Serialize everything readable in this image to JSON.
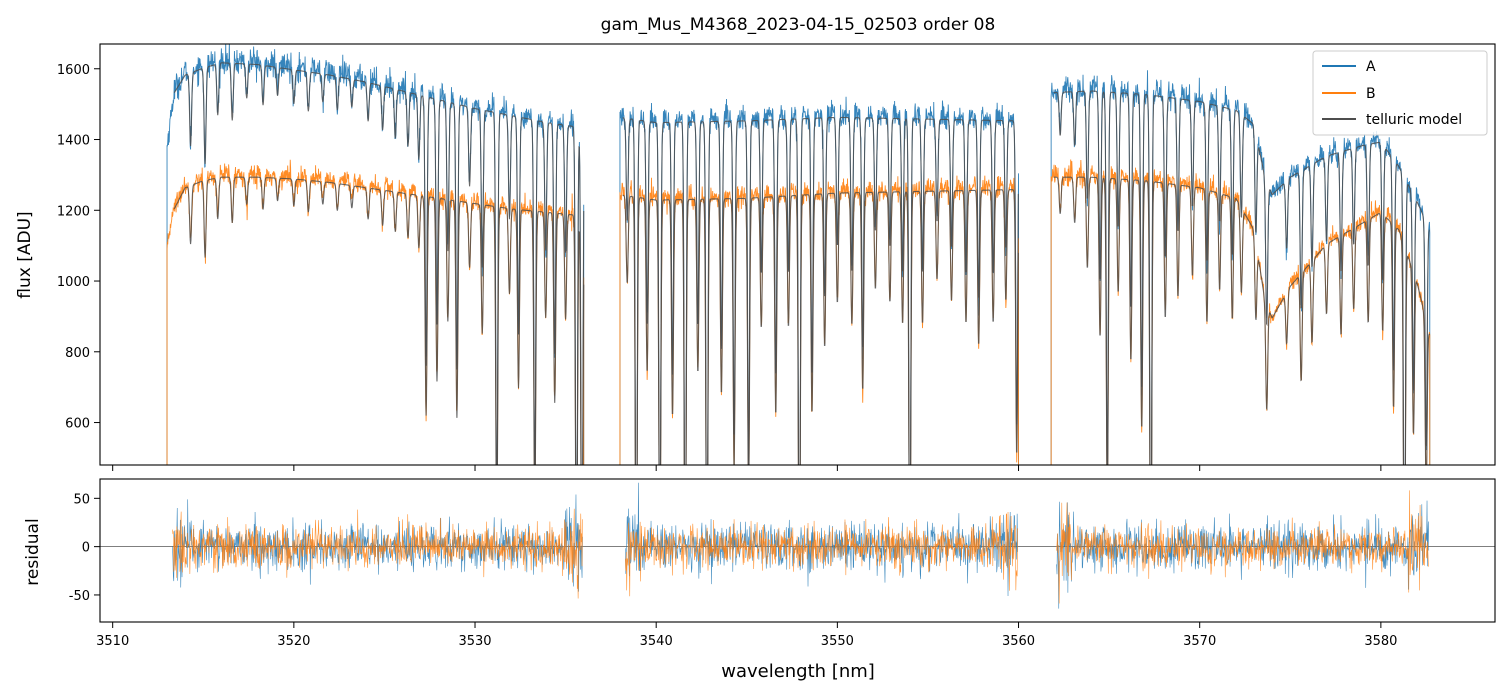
{
  "chart_data": [
    {
      "type": "line",
      "title": "gam_Mus_M4368_2023-04-15_02503  order 08",
      "xlabel": "",
      "ylabel": "flux [ADU]",
      "xlim": [
        3509.3,
        3586.3
      ],
      "ylim": [
        480,
        1670
      ],
      "yticks": [
        600,
        800,
        1000,
        1200,
        1400,
        1600
      ],
      "xticks": [
        3510,
        3520,
        3530,
        3540,
        3550,
        3560,
        3570,
        3580
      ],
      "legend": {
        "placement": "top-right",
        "entries": [
          "A",
          "B",
          "telluric model"
        ]
      },
      "series": [
        {
          "name": "A",
          "color": "#1f77b4",
          "segments": [
            {
              "x0": 3513.0,
              "x1": 3536.0,
              "continuum": [
                [
                  3513.0,
                  1380
                ],
                [
                  3513.4,
                  1540
                ],
                [
                  3514,
                  1590
                ],
                [
                  3515,
                  1610
                ],
                [
                  3516,
                  1625
                ],
                [
                  3518,
                  1620
                ],
                [
                  3520,
                  1605
                ],
                [
                  3522,
                  1590
                ],
                [
                  3524,
                  1570
                ],
                [
                  3526,
                  1545
                ],
                [
                  3528,
                  1520
                ],
                [
                  3530,
                  1495
                ],
                [
                  3532,
                  1475
                ],
                [
                  3534,
                  1455
                ],
                [
                  3536,
                  1440
                ]
              ]
            },
            {
              "x0": 3538.0,
              "x1": 3560.0,
              "continuum": [
                [
                  3538,
                  1470
                ],
                [
                  3540,
                  1455
                ],
                [
                  3545,
                  1460
                ],
                [
                  3550,
                  1470
                ],
                [
                  3555,
                  1465
                ],
                [
                  3560,
                  1460
                ]
              ]
            },
            {
              "x0": 3561.8,
              "x1": 3582.7,
              "continuum": [
                [
                  3561.8,
                  1540
                ],
                [
                  3564,
                  1545
                ],
                [
                  3567,
                  1535
                ],
                [
                  3570,
                  1515
                ],
                [
                  3572,
                  1490
                ],
                [
                  3573,
                  1450
                ],
                [
                  3573.6,
                  1300
                ],
                [
                  3574,
                  1250
                ],
                [
                  3575,
                  1300
                ],
                [
                  3577,
                  1360
                ],
                [
                  3579,
                  1390
                ],
                [
                  3580,
                  1400
                ],
                [
                  3581,
                  1330
                ],
                [
                  3582,
                  1230
                ],
                [
                  3582.7,
                  1150
                ]
              ]
            }
          ]
        },
        {
          "name": "B",
          "color": "#ff7f0e",
          "segments": [
            {
              "x0": 3513.0,
              "x1": 3536.0,
              "continuum": [
                [
                  3513.0,
                  1080
                ],
                [
                  3513.3,
                  1200
                ],
                [
                  3514,
                  1270
                ],
                [
                  3515,
                  1290
                ],
                [
                  3516,
                  1300
                ],
                [
                  3518,
                  1300
                ],
                [
                  3520,
                  1295
                ],
                [
                  3522,
                  1285
                ],
                [
                  3524,
                  1270
                ],
                [
                  3526,
                  1255
                ],
                [
                  3528,
                  1240
                ],
                [
                  3530,
                  1225
                ],
                [
                  3532,
                  1210
                ],
                [
                  3534,
                  1200
                ],
                [
                  3536,
                  1190
                ]
              ]
            },
            {
              "x0": 3538.0,
              "x1": 3560.0,
              "continuum": [
                [
                  3538,
                  1250
                ],
                [
                  3540,
                  1235
                ],
                [
                  3545,
                  1240
                ],
                [
                  3550,
                  1255
                ],
                [
                  3555,
                  1260
                ],
                [
                  3560,
                  1265
                ]
              ]
            },
            {
              "x0": 3561.8,
              "x1": 3582.7,
              "continuum": [
                [
                  3561.8,
                  1300
                ],
                [
                  3564,
                  1300
                ],
                [
                  3567,
                  1290
                ],
                [
                  3570,
                  1270
                ],
                [
                  3572,
                  1240
                ],
                [
                  3573,
                  1150
                ],
                [
                  3573.6,
                  950
                ],
                [
                  3574,
                  900
                ],
                [
                  3575,
                  990
                ],
                [
                  3577,
                  1110
                ],
                [
                  3579,
                  1170
                ],
                [
                  3580,
                  1200
                ],
                [
                  3581,
                  1150
                ],
                [
                  3582,
                  1000
                ],
                [
                  3582.7,
                  850
                ]
              ]
            }
          ]
        },
        {
          "name": "telluric model",
          "color": "#4d4d4d"
        }
      ],
      "absorption_lines": [
        [
          3514.3,
          0.13
        ],
        [
          3515.1,
          0.17
        ],
        [
          3515.8,
          0.09
        ],
        [
          3516.6,
          0.1
        ],
        [
          3517.4,
          0.06
        ],
        [
          3518.3,
          0.07
        ],
        [
          3519.1,
          0.05
        ],
        [
          3520.0,
          0.06
        ],
        [
          3520.8,
          0.07
        ],
        [
          3521.6,
          0.05
        ],
        [
          3522.4,
          0.06
        ],
        [
          3523.2,
          0.05
        ],
        [
          3524.1,
          0.07
        ],
        [
          3524.9,
          0.08
        ],
        [
          3525.6,
          0.09
        ],
        [
          3526.3,
          0.1
        ],
        [
          3526.9,
          0.12
        ],
        [
          3527.3,
          0.5
        ],
        [
          3527.9,
          0.42
        ],
        [
          3528.5,
          0.28
        ],
        [
          3529.0,
          0.5
        ],
        [
          3529.7,
          0.15
        ],
        [
          3530.4,
          0.3
        ],
        [
          3531.2,
          0.78
        ],
        [
          3531.9,
          0.2
        ],
        [
          3532.4,
          0.42
        ],
        [
          3533.3,
          0.72
        ],
        [
          3533.9,
          0.25
        ],
        [
          3534.4,
          0.45
        ],
        [
          3535.0,
          0.25
        ],
        [
          3535.6,
          0.95
        ],
        [
          3535.9,
          0.97
        ],
        [
          3538.4,
          0.2
        ],
        [
          3538.9,
          0.98
        ],
        [
          3539.5,
          0.4
        ],
        [
          3540.2,
          0.88
        ],
        [
          3540.9,
          0.5
        ],
        [
          3541.6,
          0.95
        ],
        [
          3542.3,
          0.4
        ],
        [
          3542.8,
          0.97
        ],
        [
          3543.6,
          0.45
        ],
        [
          3544.3,
          0.62
        ],
        [
          3545.1,
          0.68
        ],
        [
          3545.8,
          0.3
        ],
        [
          3546.6,
          0.5
        ],
        [
          3547.3,
          0.3
        ],
        [
          3547.9,
          0.98
        ],
        [
          3548.6,
          0.5
        ],
        [
          3549.3,
          0.35
        ],
        [
          3550.0,
          0.25
        ],
        [
          3550.8,
          0.3
        ],
        [
          3551.4,
          0.45
        ],
        [
          3552.1,
          0.22
        ],
        [
          3552.9,
          0.25
        ],
        [
          3553.6,
          0.3
        ],
        [
          3554.0,
          0.92
        ],
        [
          3554.7,
          0.3
        ],
        [
          3555.5,
          0.2
        ],
        [
          3556.3,
          0.25
        ],
        [
          3557.1,
          0.3
        ],
        [
          3557.8,
          0.35
        ],
        [
          3558.6,
          0.3
        ],
        [
          3559.3,
          0.25
        ],
        [
          3559.9,
          0.6
        ],
        [
          3562.3,
          0.08
        ],
        [
          3563.1,
          0.1
        ],
        [
          3563.8,
          0.2
        ],
        [
          3564.5,
          0.35
        ],
        [
          3564.9,
          0.72
        ],
        [
          3565.5,
          0.25
        ],
        [
          3566.2,
          0.4
        ],
        [
          3566.8,
          0.55
        ],
        [
          3567.3,
          0.98
        ],
        [
          3568.1,
          0.3
        ],
        [
          3568.8,
          0.25
        ],
        [
          3569.6,
          0.2
        ],
        [
          3570.4,
          0.3
        ],
        [
          3571.1,
          0.22
        ],
        [
          3571.8,
          0.28
        ],
        [
          3572.3,
          0.2
        ],
        [
          3573.1,
          0.2
        ],
        [
          3573.7,
          0.32
        ],
        [
          3574.8,
          0.15
        ],
        [
          3575.6,
          0.3
        ],
        [
          3576.2,
          0.22
        ],
        [
          3577.0,
          0.18
        ],
        [
          3577.8,
          0.25
        ],
        [
          3578.5,
          0.2
        ],
        [
          3579.3,
          0.25
        ],
        [
          3580.1,
          0.28
        ],
        [
          3580.7,
          0.45
        ],
        [
          3581.3,
          0.98
        ],
        [
          3581.8,
          0.45
        ],
        [
          3582.5,
          0.55
        ]
      ]
    },
    {
      "type": "line",
      "title": "",
      "xlabel": "wavelength [nm]",
      "ylabel": "residual",
      "xlim": [
        3509.3,
        3586.3
      ],
      "ylim": [
        -78,
        70
      ],
      "yticks": [
        -50,
        0,
        50
      ],
      "xticks": [
        3510,
        3520,
        3530,
        3540,
        3550,
        3560,
        3570,
        3580
      ],
      "reference_line": 0,
      "series": [
        {
          "name": "A",
          "color": "#1f77b4",
          "noise_amplitude": 22
        },
        {
          "name": "B",
          "color": "#ff7f0e",
          "noise_amplitude": 20
        }
      ]
    }
  ]
}
